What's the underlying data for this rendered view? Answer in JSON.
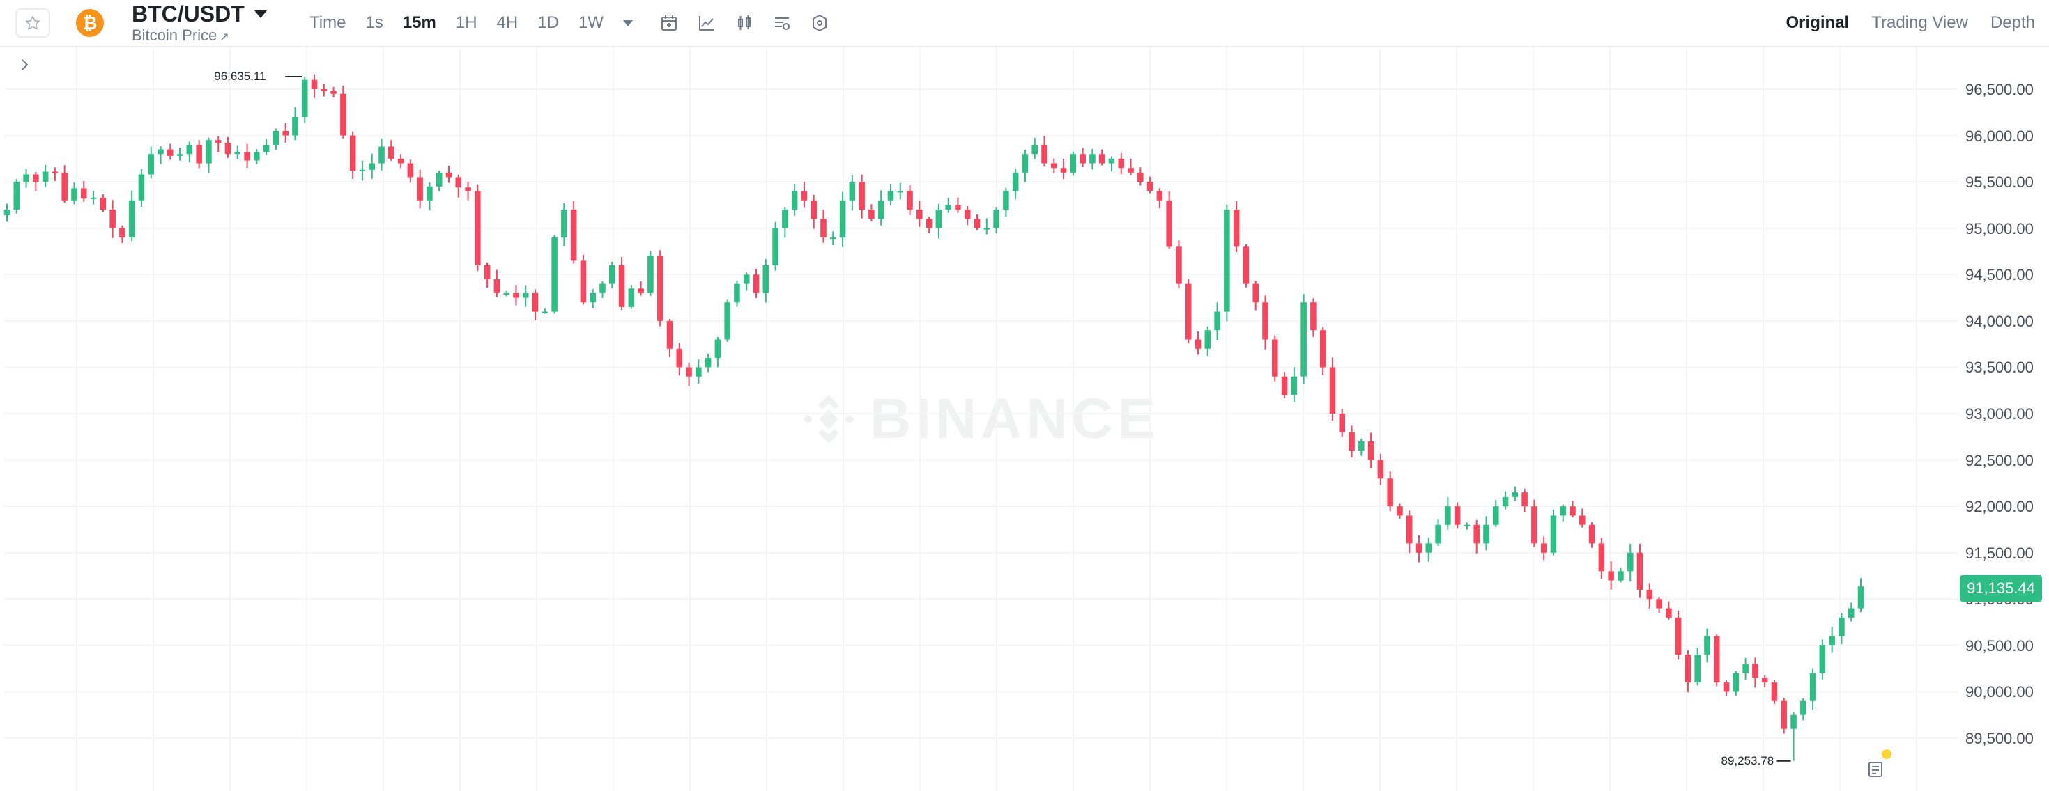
{
  "header": {
    "pair": "BTC/USDT",
    "subtitle": "Bitcoin Price",
    "subtitle_link_icon": "external-link-icon",
    "coin_icon": "bitcoin-icon",
    "favorite_icon": "star-icon",
    "intervals": [
      "Time",
      "1s",
      "15m",
      "1H",
      "4H",
      "1D",
      "1W"
    ],
    "active_interval": "15m",
    "tools": [
      "calendar-icon",
      "indicator-icon",
      "candle-type-icon",
      "chart-settings-icon",
      "hexagon-settings-icon"
    ],
    "views": [
      "Original",
      "Trading View",
      "Depth"
    ],
    "active_view": "Original"
  },
  "chart": {
    "watermark": "BINANCE",
    "price_axis": [
      "96,500.00",
      "96,000.00",
      "95,500.00",
      "95,000.00",
      "94,500.00",
      "94,000.00",
      "93,500.00",
      "93,000.00",
      "92,500.00",
      "92,000.00",
      "91,500.00",
      "91,000.00",
      "90,500.00",
      "90,000.00",
      "89,500.00"
    ],
    "current_price": "91,135.44",
    "high_label": "96,635.11",
    "low_label": "89,253.78",
    "colors": {
      "up": "#2ebd85",
      "down": "#f6465d",
      "current": "#2ebd85"
    }
  },
  "chart_data": {
    "type": "candlestick",
    "ylim": [
      89200,
      96700
    ],
    "y_ticks": [
      96500,
      96000,
      95500,
      95000,
      94500,
      94000,
      93500,
      93000,
      92500,
      92000,
      91500,
      91000,
      90500,
      90000,
      89500
    ],
    "high": 96635.11,
    "low": 89253.78,
    "last": 91135.44,
    "close_path": [
      95200,
      95500,
      95580,
      95500,
      95610,
      95600,
      95300,
      95430,
      95320,
      95330,
      95200,
      95000,
      94900,
      95300,
      95580,
      95800,
      95850,
      95780,
      95800,
      95900,
      95700,
      95950,
      95920,
      95800,
      95820,
      95730,
      95820,
      95900,
      96050,
      96000,
      96200,
      96600,
      96500,
      96480,
      96450,
      96000,
      95620,
      95630,
      95700,
      95880,
      95750,
      95700,
      95550,
      95300,
      95450,
      95600,
      95550,
      95440,
      95400,
      94600,
      94450,
      94300,
      94300,
      94250,
      94300,
      94100,
      94100,
      94900,
      95200,
      94650,
      94200,
      94300,
      94400,
      94600,
      94150,
      94350,
      94300,
      94700,
      94000,
      93700,
      93500,
      93400,
      93500,
      93600,
      93800,
      94200,
      94400,
      94500,
      94300,
      94600,
      95000,
      95200,
      95400,
      95300,
      95100,
      94900,
      94900,
      95300,
      95500,
      95200,
      95100,
      95300,
      95400,
      95400,
      95200,
      95100,
      95000,
      95200,
      95250,
      95200,
      95100,
      95000,
      95000,
      95200,
      95400,
      95600,
      95800,
      95900,
      95700,
      95650,
      95600,
      95800,
      95700,
      95800,
      95700,
      95750,
      95650,
      95600,
      95500,
      95400,
      95300,
      94800,
      94400,
      93800,
      93700,
      93900,
      94100,
      95200,
      94800,
      94400,
      94200,
      93800,
      93400,
      93200,
      93400,
      94200,
      93900,
      93500,
      93000,
      92800,
      92600,
      92700,
      92500,
      92300,
      92000,
      91900,
      91600,
      91500,
      91600,
      91800,
      92000,
      91800,
      91800,
      91600,
      91800,
      92000,
      92100,
      92150,
      92000,
      91600,
      91500,
      91900,
      92000,
      91900,
      91800,
      91600,
      91300,
      91200,
      91300,
      91500,
      91100,
      91000,
      90900,
      90800,
      90400,
      90100,
      90400,
      90600,
      90100,
      90000,
      90200,
      90300,
      90150,
      90100,
      89900,
      89600,
      89750,
      89900,
      90200,
      90500,
      90600,
      90800,
      90900,
      91135.44
    ]
  }
}
